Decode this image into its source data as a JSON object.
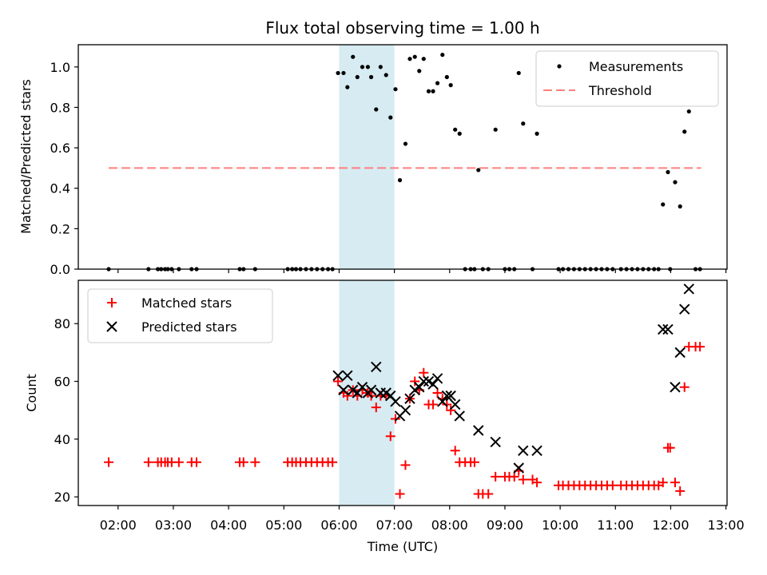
{
  "chart_data": {
    "title": "Flux total observing time = 1.00 h",
    "xlabel": "Time (UTC)",
    "xticks": [
      {
        "hour": 2,
        "label": "02:00"
      },
      {
        "hour": 3,
        "label": "03:00"
      },
      {
        "hour": 4,
        "label": "04:00"
      },
      {
        "hour": 5,
        "label": "05:00"
      },
      {
        "hour": 6,
        "label": "06:00"
      },
      {
        "hour": 7,
        "label": "07:00"
      },
      {
        "hour": 8,
        "label": "08:00"
      },
      {
        "hour": 9,
        "label": "09:00"
      },
      {
        "hour": 10,
        "label": "10:00"
      },
      {
        "hour": 11,
        "label": "11:00"
      },
      {
        "hour": 12,
        "label": "12:00"
      },
      {
        "hour": 13,
        "label": "13:00"
      }
    ],
    "xlim": [
      1.28,
      13.02
    ],
    "highlight_span": [
      6.0,
      7.0
    ],
    "colors": {
      "highlight": "#add8e6",
      "threshold": "#ff7f7f",
      "matched": "#ff0000",
      "predicted": "#000000",
      "measurements": "#000000"
    },
    "top": {
      "type": "scatter",
      "ylabel": "Matched/Predicted stars",
      "ylim": [
        0,
        1.11
      ],
      "yticks": [
        "0.0",
        "0.2",
        "0.4",
        "0.6",
        "0.8",
        "1.0"
      ],
      "threshold": {
        "value": 0.5,
        "x": [
          1.83,
          12.55
        ]
      },
      "legend": [
        "Measurements",
        "Threshold"
      ],
      "series": [
        {
          "name": "Measurements",
          "points": [
            [
              1.83,
              0
            ],
            [
              2.55,
              0
            ],
            [
              2.72,
              0
            ],
            [
              2.78,
              0
            ],
            [
              2.85,
              0
            ],
            [
              2.9,
              0
            ],
            [
              2.97,
              0
            ],
            [
              3.1,
              0
            ],
            [
              3.33,
              0
            ],
            [
              3.42,
              0
            ],
            [
              4.2,
              0
            ],
            [
              4.27,
              0
            ],
            [
              4.48,
              0
            ],
            [
              5.07,
              0
            ],
            [
              5.15,
              0
            ],
            [
              5.22,
              0
            ],
            [
              5.3,
              0
            ],
            [
              5.4,
              0
            ],
            [
              5.5,
              0
            ],
            [
              5.6,
              0
            ],
            [
              5.7,
              0
            ],
            [
              5.8,
              0
            ],
            [
              5.88,
              0
            ],
            [
              5.98,
              0.97
            ],
            [
              6.08,
              0.97
            ],
            [
              6.15,
              0.9
            ],
            [
              6.25,
              1.05
            ],
            [
              6.33,
              0.95
            ],
            [
              6.42,
              1.0
            ],
            [
              6.52,
              1.0
            ],
            [
              6.58,
              0.95
            ],
            [
              6.67,
              0.79
            ],
            [
              6.75,
              1.0
            ],
            [
              6.85,
              0.96
            ],
            [
              6.93,
              0.75
            ],
            [
              7.02,
              0.89
            ],
            [
              7.1,
              0.44
            ],
            [
              7.2,
              0.62
            ],
            [
              7.28,
              1.04
            ],
            [
              7.37,
              1.05
            ],
            [
              7.45,
              0.98
            ],
            [
              7.53,
              1.04
            ],
            [
              7.62,
              0.88
            ],
            [
              7.7,
              0.88
            ],
            [
              7.78,
              0.92
            ],
            [
              7.87,
              1.06
            ],
            [
              7.95,
              0.95
            ],
            [
              8.02,
              0.91
            ],
            [
              8.1,
              0.69
            ],
            [
              8.18,
              0.67
            ],
            [
              8.28,
              0
            ],
            [
              8.38,
              0
            ],
            [
              8.45,
              0
            ],
            [
              8.52,
              0.49
            ],
            [
              8.6,
              0
            ],
            [
              8.7,
              0
            ],
            [
              8.83,
              0.69
            ],
            [
              9.0,
              0
            ],
            [
              9.08,
              0
            ],
            [
              9.17,
              0
            ],
            [
              9.25,
              0.97
            ],
            [
              9.33,
              0.72
            ],
            [
              9.5,
              0
            ],
            [
              9.58,
              0.67
            ],
            [
              9.97,
              0
            ],
            [
              10.05,
              0
            ],
            [
              10.15,
              0
            ],
            [
              10.25,
              0
            ],
            [
              10.35,
              0
            ],
            [
              10.45,
              0
            ],
            [
              10.55,
              0
            ],
            [
              10.65,
              0
            ],
            [
              10.75,
              0
            ],
            [
              10.85,
              0
            ],
            [
              10.95,
              0
            ],
            [
              11.1,
              0
            ],
            [
              11.2,
              0
            ],
            [
              11.3,
              0
            ],
            [
              11.4,
              0
            ],
            [
              11.5,
              0
            ],
            [
              11.6,
              0
            ],
            [
              11.7,
              0
            ],
            [
              11.78,
              0
            ],
            [
              11.86,
              0.32
            ],
            [
              11.95,
              0.48
            ],
            [
              11.99,
              0
            ],
            [
              12.08,
              0.43
            ],
            [
              12.17,
              0.31
            ],
            [
              12.25,
              0.68
            ],
            [
              12.33,
              0.78
            ],
            [
              12.45,
              0
            ],
            [
              12.53,
              0
            ]
          ]
        }
      ]
    },
    "bottom": {
      "type": "scatter",
      "ylabel": "Count",
      "ylim": [
        17,
        95
      ],
      "yticks": [
        "20",
        "40",
        "60",
        "80"
      ],
      "legend": [
        "Matched stars",
        "Predicted stars"
      ],
      "series": [
        {
          "name": "Matched stars",
          "marker": "+",
          "points": [
            [
              1.83,
              32
            ],
            [
              2.55,
              32
            ],
            [
              2.72,
              32
            ],
            [
              2.78,
              32
            ],
            [
              2.85,
              32
            ],
            [
              2.9,
              32
            ],
            [
              2.97,
              32
            ],
            [
              3.1,
              32
            ],
            [
              3.33,
              32
            ],
            [
              3.42,
              32
            ],
            [
              4.2,
              32
            ],
            [
              4.27,
              32
            ],
            [
              4.48,
              32
            ],
            [
              5.07,
              32
            ],
            [
              5.15,
              32
            ],
            [
              5.22,
              32
            ],
            [
              5.3,
              32
            ],
            [
              5.4,
              32
            ],
            [
              5.5,
              32
            ],
            [
              5.6,
              32
            ],
            [
              5.7,
              32
            ],
            [
              5.8,
              32
            ],
            [
              5.88,
              32
            ],
            [
              5.98,
              60
            ],
            [
              6.08,
              56
            ],
            [
              6.15,
              55
            ],
            [
              6.25,
              57
            ],
            [
              6.33,
              55
            ],
            [
              6.42,
              57
            ],
            [
              6.52,
              56
            ],
            [
              6.58,
              55
            ],
            [
              6.67,
              51
            ],
            [
              6.75,
              55
            ],
            [
              6.85,
              55
            ],
            [
              6.93,
              41
            ],
            [
              7.02,
              47
            ],
            [
              7.1,
              21
            ],
            [
              7.2,
              31
            ],
            [
              7.28,
              54
            ],
            [
              7.37,
              60
            ],
            [
              7.45,
              57
            ],
            [
              7.53,
              63
            ],
            [
              7.62,
              52
            ],
            [
              7.7,
              52
            ],
            [
              7.78,
              56
            ],
            [
              7.87,
              54
            ],
            [
              7.95,
              52
            ],
            [
              8.02,
              50
            ],
            [
              8.1,
              36
            ],
            [
              8.18,
              32
            ],
            [
              8.28,
              32
            ],
            [
              8.38,
              32
            ],
            [
              8.45,
              32
            ],
            [
              8.52,
              21
            ],
            [
              8.6,
              21
            ],
            [
              8.7,
              21
            ],
            [
              8.83,
              27
            ],
            [
              9.0,
              27
            ],
            [
              9.08,
              27
            ],
            [
              9.17,
              27
            ],
            [
              9.25,
              29
            ],
            [
              9.33,
              26
            ],
            [
              9.5,
              26
            ],
            [
              9.58,
              25
            ],
            [
              9.97,
              24
            ],
            [
              10.05,
              24
            ],
            [
              10.15,
              24
            ],
            [
              10.25,
              24
            ],
            [
              10.35,
              24
            ],
            [
              10.45,
              24
            ],
            [
              10.55,
              24
            ],
            [
              10.65,
              24
            ],
            [
              10.75,
              24
            ],
            [
              10.85,
              24
            ],
            [
              10.95,
              24
            ],
            [
              11.1,
              24
            ],
            [
              11.2,
              24
            ],
            [
              11.3,
              24
            ],
            [
              11.4,
              24
            ],
            [
              11.5,
              24
            ],
            [
              11.6,
              24
            ],
            [
              11.7,
              24
            ],
            [
              11.78,
              24
            ],
            [
              11.86,
              25
            ],
            [
              11.95,
              37
            ],
            [
              11.99,
              37
            ],
            [
              12.08,
              25
            ],
            [
              12.17,
              22
            ],
            [
              12.25,
              58
            ],
            [
              12.33,
              72
            ],
            [
              12.45,
              72
            ],
            [
              12.53,
              72
            ]
          ]
        },
        {
          "name": "Predicted stars",
          "marker": "x",
          "points": [
            [
              5.98,
              62
            ],
            [
              6.08,
              57
            ],
            [
              6.15,
              62
            ],
            [
              6.25,
              57
            ],
            [
              6.33,
              56
            ],
            [
              6.42,
              58
            ],
            [
              6.52,
              56
            ],
            [
              6.58,
              57
            ],
            [
              6.67,
              65
            ],
            [
              6.75,
              56
            ],
            [
              6.85,
              56
            ],
            [
              6.93,
              55
            ],
            [
              7.02,
              53
            ],
            [
              7.1,
              48
            ],
            [
              7.2,
              50
            ],
            [
              7.28,
              54
            ],
            [
              7.37,
              57
            ],
            [
              7.45,
              58
            ],
            [
              7.53,
              60
            ],
            [
              7.62,
              60
            ],
            [
              7.7,
              59
            ],
            [
              7.78,
              61
            ],
            [
              7.87,
              53
            ],
            [
              7.95,
              55
            ],
            [
              8.02,
              55
            ],
            [
              8.1,
              52
            ],
            [
              8.18,
              48
            ],
            [
              8.52,
              43
            ],
            [
              8.83,
              39
            ],
            [
              9.25,
              30
            ],
            [
              9.33,
              36
            ],
            [
              9.58,
              36
            ],
            [
              11.86,
              78
            ],
            [
              11.95,
              78
            ],
            [
              12.08,
              58
            ],
            [
              12.17,
              70
            ],
            [
              12.25,
              85
            ],
            [
              12.33,
              92
            ]
          ]
        }
      ]
    }
  }
}
